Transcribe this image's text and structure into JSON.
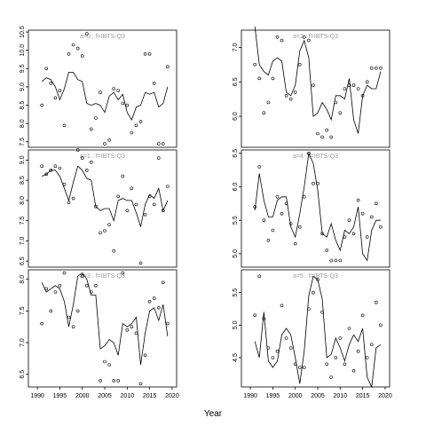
{
  "chart_data": [
    {
      "type": "scatter",
      "label": "a=0  :  f=IBTS-Q3",
      "xlim": [
        1988,
        2021
      ],
      "ylim": [
        7.35,
        10.55
      ],
      "yticks": [
        7.5,
        8.0,
        8.5,
        9.0,
        9.5,
        10.0,
        10.5
      ],
      "xticks": [],
      "observed": {
        "x": [
          1991,
          1992,
          1993,
          1994,
          1995,
          1996,
          1997,
          1998,
          1999,
          2000,
          2001,
          2002,
          2003,
          2004,
          2005,
          2006,
          2007,
          2008,
          2009,
          2010,
          2011,
          2012,
          2013,
          2014,
          2015,
          2016,
          2017,
          2018,
          2019
        ],
        "y": [
          8.5,
          9.5,
          9.1,
          8.7,
          8.9,
          7.95,
          9.9,
          10.15,
          10.05,
          9.85,
          10.45,
          7.85,
          8.15,
          8.85,
          7.45,
          7.55,
          8.95,
          8.9,
          8.55,
          8.5,
          7.75,
          7.95,
          8.05,
          9.9,
          9.9,
          9.1,
          7.45,
          7.45,
          9.55
        ]
      },
      "fitted": {
        "x": [
          1991,
          1992,
          1993,
          1994,
          1995,
          1996,
          1997,
          1998,
          1999,
          2000,
          2001,
          2002,
          2003,
          2004,
          2005,
          2006,
          2007,
          2008,
          2009,
          2010,
          2011,
          2012,
          2013,
          2014,
          2015,
          2016,
          2017,
          2018,
          2019
        ],
        "y": [
          9.15,
          9.25,
          9.2,
          9.0,
          8.65,
          8.95,
          9.4,
          9.4,
          9.2,
          9.15,
          8.55,
          8.5,
          8.55,
          8.5,
          8.3,
          8.75,
          8.85,
          8.65,
          8.8,
          8.3,
          8.1,
          8.45,
          8.5,
          8.85,
          8.8,
          8.85,
          8.45,
          8.55,
          9.0
        ]
      }
    },
    {
      "type": "scatter",
      "label": "a=2  :  f=IBTS-Q3",
      "xlim": [
        1988,
        2021
      ],
      "ylim": [
        5.55,
        7.25
      ],
      "yticks": [
        6.0,
        6.5,
        7.0
      ],
      "xticks": [],
      "observed": {
        "x": [
          1991,
          1992,
          1993,
          1994,
          1995,
          1996,
          1997,
          1998,
          1999,
          2000,
          2001,
          2002,
          2003,
          2004,
          2005,
          2006,
          2007,
          2008,
          2009,
          2010,
          2011,
          2012,
          2013,
          2014,
          2015,
          2016,
          2017,
          2018,
          2019
        ],
        "y": [
          6.75,
          6.55,
          6.05,
          6.2,
          6.55,
          7.15,
          7.1,
          6.3,
          6.25,
          6.35,
          6.75,
          7.15,
          7.1,
          6.45,
          5.75,
          5.7,
          5.8,
          5.7,
          6.2,
          6.05,
          6.4,
          6.45,
          6.45,
          6.4,
          6.3,
          6.5,
          6.7,
          6.7,
          6.7
        ]
      },
      "fitted": {
        "x": [
          1991,
          1992,
          1993,
          1994,
          1995,
          1996,
          1997,
          1998,
          1999,
          2000,
          2001,
          2002,
          2003,
          2004,
          2005,
          2006,
          2007,
          2008,
          2009,
          2010,
          2011,
          2012,
          2013,
          2014,
          2015,
          2016,
          2017,
          2018,
          2019
        ],
        "y": [
          7.3,
          6.75,
          6.65,
          6.6,
          6.8,
          6.85,
          6.8,
          6.35,
          6.3,
          6.45,
          6.95,
          7.1,
          6.85,
          6.0,
          6.05,
          6.2,
          6.1,
          5.95,
          6.3,
          6.3,
          6.25,
          6.55,
          5.95,
          5.75,
          6.3,
          6.45,
          6.4,
          6.4,
          6.65
        ]
      }
    },
    {
      "type": "scatter",
      "label": "a=1  :  f=IBTS-Q3",
      "xlim": [
        1988,
        2021
      ],
      "ylim": [
        6.35,
        9.25
      ],
      "yticks": [
        6.5,
        7.0,
        7.5,
        8.0,
        8.5,
        9.0
      ],
      "xticks": [],
      "observed": {
        "x": [
          1991,
          1992,
          1993,
          1994,
          1995,
          1996,
          1997,
          1998,
          1999,
          2000,
          2001,
          2002,
          2003,
          2004,
          2005,
          2006,
          2007,
          2008,
          2009,
          2010,
          2011,
          2012,
          2013,
          2014,
          2015,
          2016,
          2017,
          2018,
          2019
        ],
        "y": [
          8.85,
          8.65,
          8.75,
          8.85,
          8.8,
          8.4,
          7.95,
          8.05,
          9.25,
          9.05,
          8.75,
          8.95,
          7.85,
          7.2,
          7.25,
          7.4,
          6.75,
          8.1,
          8.6,
          7.75,
          8.3,
          7.9,
          6.45,
          7.65,
          8.1,
          7.9,
          9.05,
          7.75,
          8.35
        ]
      },
      "fitted": {
        "x": [
          1991,
          1992,
          1993,
          1994,
          1995,
          1996,
          1997,
          1998,
          1999,
          2000,
          2001,
          2002,
          2003,
          2004,
          2005,
          2006,
          2007,
          2008,
          2009,
          2010,
          2011,
          2012,
          2013,
          2014,
          2015,
          2016,
          2017,
          2018,
          2019
        ],
        "y": [
          8.6,
          8.65,
          8.75,
          8.75,
          8.6,
          8.3,
          8.0,
          8.45,
          8.85,
          8.75,
          8.55,
          8.5,
          7.85,
          7.75,
          7.8,
          7.8,
          7.5,
          8.0,
          8.05,
          8.0,
          8.0,
          7.7,
          7.35,
          7.9,
          8.15,
          8.05,
          8.3,
          7.75,
          8.0
        ]
      }
    },
    {
      "type": "scatter",
      "label": "a=4  :  f=IBTS-Q3",
      "xlim": [
        1988,
        2021
      ],
      "ylim": [
        4.8,
        6.55
      ],
      "yticks": [
        5.0,
        5.5,
        6.0,
        6.5
      ],
      "xticks": [],
      "observed": {
        "x": [
          1991,
          1992,
          1993,
          1994,
          1995,
          1996,
          1997,
          1998,
          1999,
          2000,
          2001,
          2002,
          2003,
          2004,
          2005,
          2006,
          2007,
          2008,
          2009,
          2010,
          2011,
          2012,
          2013,
          2014,
          2015,
          2016,
          2017,
          2018,
          2019
        ],
        "y": [
          5.7,
          6.3,
          5.5,
          5.2,
          5.35,
          5.85,
          5.6,
          5.75,
          5.45,
          5.15,
          5.4,
          5.85,
          6.5,
          6.05,
          6.05,
          5.3,
          5.05,
          4.9,
          4.9,
          4.9,
          5.25,
          5.5,
          5.3,
          5.8,
          5.6,
          5.25,
          5.55,
          5.75,
          5.4
        ]
      },
      "fitted": {
        "x": [
          1991,
          1992,
          1993,
          1994,
          1995,
          1996,
          1997,
          1998,
          1999,
          2000,
          2001,
          2002,
          2003,
          2004,
          2005,
          2006,
          2007,
          2008,
          2009,
          2010,
          2011,
          2012,
          2013,
          2014,
          2015,
          2016,
          2017,
          2018,
          2019
        ],
        "y": [
          5.65,
          6.2,
          5.8,
          5.55,
          5.55,
          5.8,
          5.85,
          5.85,
          5.4,
          5.25,
          5.6,
          6.0,
          6.5,
          6.35,
          5.95,
          5.3,
          5.25,
          5.45,
          5.2,
          5.05,
          5.35,
          5.3,
          5.4,
          5.7,
          5.0,
          4.9,
          5.35,
          5.5,
          5.5
        ]
      }
    },
    {
      "type": "scatter",
      "label": "a=3  :  f=IBTS-Q3",
      "xlim": [
        1988,
        2021
      ],
      "ylim": [
        6.3,
        8.15
      ],
      "yticks": [
        6.5,
        7.0,
        7.5,
        8.0
      ],
      "xticks": [
        1990,
        1995,
        2000,
        2005,
        2010,
        2015,
        2020
      ],
      "observed": {
        "x": [
          1991,
          1992,
          1993,
          1994,
          1995,
          1996,
          1997,
          1998,
          1999,
          2000,
          2001,
          2002,
          2003,
          2004,
          2005,
          2006,
          2007,
          2008,
          2009,
          2010,
          2011,
          2012,
          2013,
          2014,
          2015,
          2016,
          2017,
          2018,
          2019
        ],
        "y": [
          7.3,
          7.85,
          7.5,
          7.8,
          7.9,
          8.1,
          7.4,
          7.25,
          7.5,
          8.05,
          7.9,
          7.8,
          7.9,
          6.4,
          6.7,
          6.65,
          6.4,
          6.4,
          8.1,
          7.2,
          7.25,
          7.15,
          6.35,
          6.8,
          7.65,
          7.7,
          7.55,
          7.95,
          7.3
        ]
      },
      "fitted": {
        "x": [
          1991,
          1992,
          1993,
          1994,
          1995,
          1996,
          1997,
          1998,
          1999,
          2000,
          2001,
          2002,
          2003,
          2004,
          2005,
          2006,
          2007,
          2008,
          2009,
          2010,
          2011,
          2012,
          2013,
          2014,
          2015,
          2016,
          2017,
          2018,
          2019
        ],
        "y": [
          7.95,
          7.8,
          7.85,
          7.9,
          7.85,
          7.65,
          7.25,
          7.6,
          8.05,
          8.1,
          8.0,
          7.75,
          7.75,
          6.9,
          6.95,
          7.05,
          7.0,
          6.8,
          7.3,
          7.25,
          7.3,
          7.4,
          6.65,
          7.15,
          7.5,
          7.55,
          7.35,
          7.6,
          7.1
        ]
      }
    },
    {
      "type": "scatter",
      "label": "a=5  :  f=IBTS-Q3",
      "xlim": [
        1988,
        2021
      ],
      "ylim": [
        4.05,
        5.85
      ],
      "yticks": [
        4.5,
        5.0,
        5.5
      ],
      "xticks": [
        1990,
        1995,
        2000,
        2005,
        2010,
        2015,
        2020
      ],
      "observed": {
        "x": [
          1991,
          1992,
          1993,
          1994,
          1995,
          1996,
          1997,
          1998,
          1999,
          2000,
          2001,
          2002,
          2003,
          2004,
          2005,
          2006,
          2007,
          2008,
          2009,
          2010,
          2011,
          2012,
          2013,
          2014,
          2015,
          2016,
          2017,
          2018,
          2019
        ],
        "y": [
          5.15,
          5.75,
          5.1,
          4.65,
          4.5,
          4.6,
          5.3,
          4.8,
          4.65,
          4.4,
          4.35,
          4.35,
          5.25,
          5.5,
          5.7,
          5.2,
          4.4,
          4.2,
          4.5,
          4.8,
          4.4,
          4.95,
          4.3,
          4.6,
          5.15,
          4.5,
          4.7,
          5.35,
          5.0
        ]
      },
      "fitted": {
        "x": [
          1991,
          1992,
          1993,
          1994,
          1995,
          1996,
          1997,
          1998,
          1999,
          2000,
          2001,
          2002,
          2003,
          2004,
          2005,
          2006,
          2007,
          2008,
          2009,
          2010,
          2011,
          2012,
          2013,
          2014,
          2015,
          2016,
          2017,
          2018,
          2019
        ],
        "y": [
          4.75,
          4.5,
          5.2,
          4.45,
          4.35,
          4.45,
          4.85,
          4.95,
          4.85,
          4.5,
          4.1,
          4.6,
          5.45,
          5.75,
          5.7,
          5.4,
          4.5,
          4.55,
          4.8,
          4.65,
          4.45,
          4.7,
          4.85,
          4.75,
          4.95,
          4.2,
          4.05,
          4.65,
          4.7
        ]
      }
    }
  ],
  "xlabel": "Year"
}
